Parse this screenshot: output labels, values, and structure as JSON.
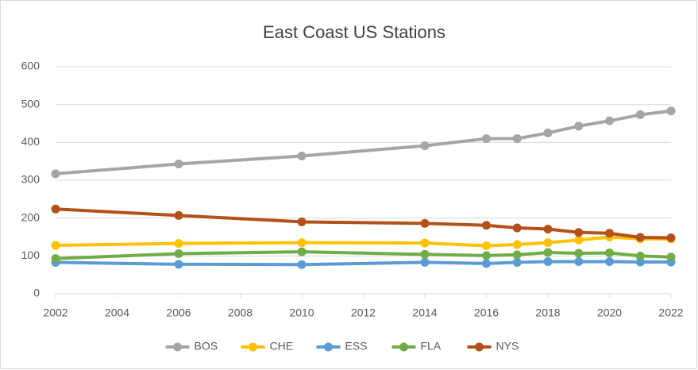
{
  "chart_data": {
    "type": "line",
    "title": "East Coast US Stations",
    "x": [
      2002,
      2006,
      2010,
      2014,
      2016,
      2017,
      2018,
      2019,
      2020,
      2021,
      2022
    ],
    "series": [
      {
        "name": "BOS",
        "color": "#a5a5a5",
        "values": [
          317,
          343,
          364,
          391,
          410,
          410,
          425,
          443,
          457,
          473,
          483
        ]
      },
      {
        "name": "CHE",
        "color": "#ffc000",
        "values": [
          128,
          133,
          135,
          134,
          127,
          130,
          135,
          142,
          150,
          145,
          145
        ]
      },
      {
        "name": "ESS",
        "color": "#5b9bd5",
        "values": [
          83,
          78,
          77,
          83,
          80,
          83,
          85,
          85,
          85,
          84,
          84
        ]
      },
      {
        "name": "FLA",
        "color": "#70ad47",
        "values": [
          93,
          106,
          111,
          104,
          101,
          103,
          109,
          107,
          108,
          100,
          97
        ]
      },
      {
        "name": "NYS",
        "color": "#b4501a",
        "values": [
          224,
          207,
          190,
          186,
          181,
          174,
          171,
          162,
          160,
          149,
          148
        ]
      }
    ],
    "xlim": [
      2002,
      2022
    ],
    "xticks": [
      2002,
      2004,
      2006,
      2008,
      2010,
      2012,
      2014,
      2016,
      2018,
      2020,
      2022
    ],
    "ylim": [
      0,
      600
    ],
    "yticks": [
      0,
      100,
      200,
      300,
      400,
      500,
      600
    ],
    "grid": true,
    "legend": "bottom"
  }
}
